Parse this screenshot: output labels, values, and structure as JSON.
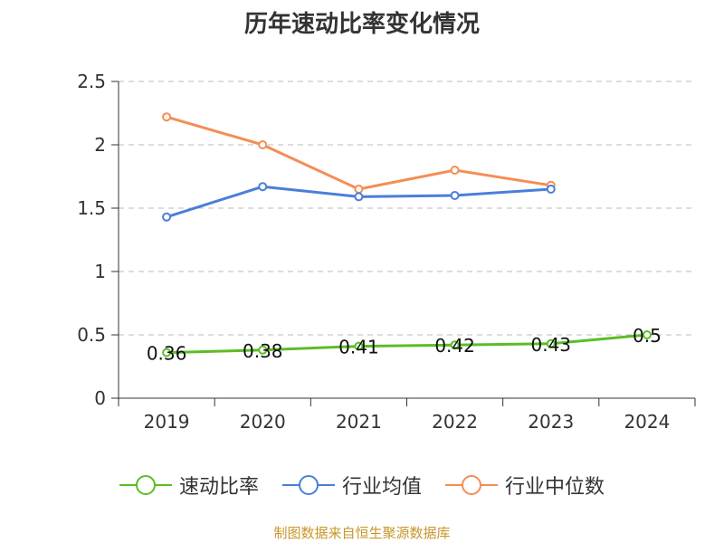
{
  "title": "历年速动比率变化情况",
  "source": "制图数据来自恒生聚源数据库",
  "colors": {
    "axis": "#333333",
    "grid": "#bbbbbb"
  },
  "chart_data": {
    "type": "line",
    "title": "历年速动比率变化情况",
    "categories": [
      "2019",
      "2020",
      "2021",
      "2022",
      "2023",
      "2024"
    ],
    "ylim": [
      0,
      2.5
    ],
    "yticks": [
      "0",
      "0.5",
      "1",
      "1.5",
      "2",
      "2.5"
    ],
    "grid": true,
    "legend_position": "bottom",
    "series": [
      {
        "name": "速动比率",
        "color": "#5cbd26",
        "values": [
          0.36,
          0.38,
          0.41,
          0.42,
          0.43,
          0.5
        ],
        "labels": [
          "0.36",
          "0.38",
          "0.41",
          "0.42",
          "0.43",
          "0.5"
        ]
      },
      {
        "name": "行业均值",
        "color": "#4a7fd8",
        "values": [
          1.43,
          1.67,
          1.59,
          1.6,
          1.65,
          null
        ]
      },
      {
        "name": "行业中位数",
        "color": "#f38e55",
        "values": [
          2.22,
          2.0,
          1.65,
          1.8,
          1.68,
          null
        ]
      }
    ]
  }
}
